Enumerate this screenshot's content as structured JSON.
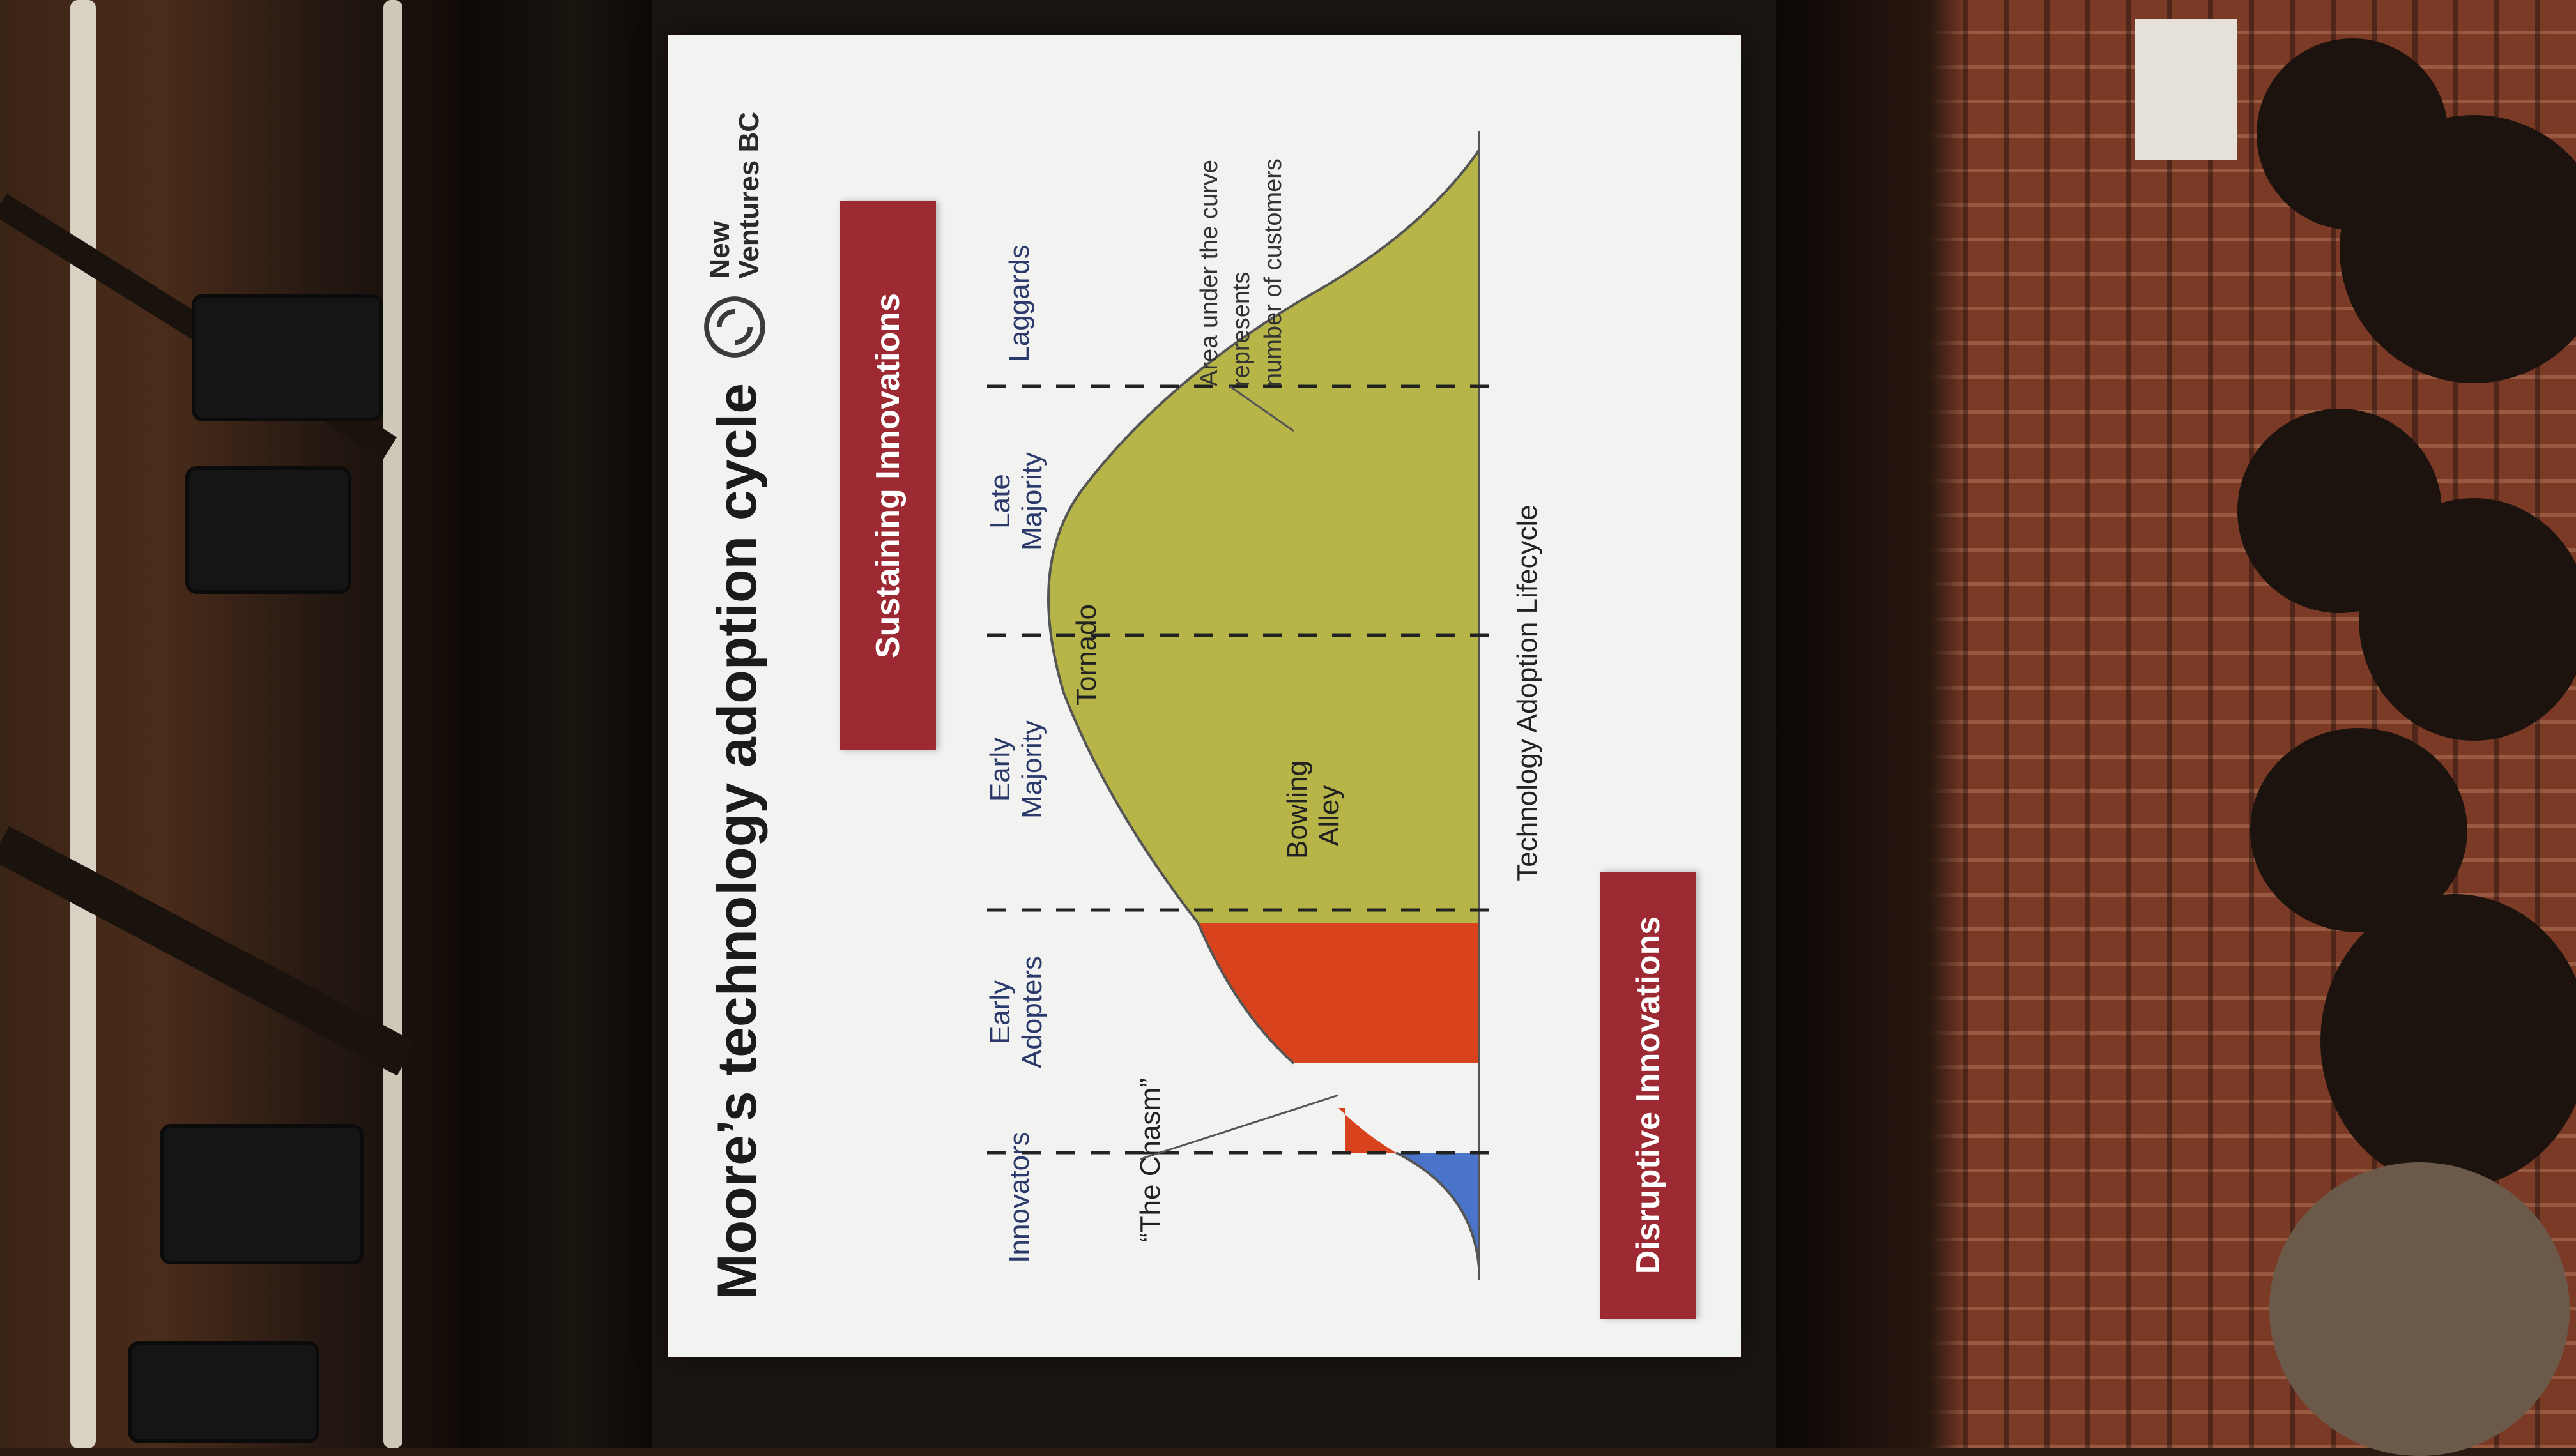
{
  "slide": {
    "title": "Moore’s technology adoption cycle",
    "brand": {
      "line1": "New",
      "line2": "Ventures BC",
      "logo_icon": "spiral-logo-icon"
    },
    "sustaining_label": "Sustaining Innovations",
    "disruptive_label": "Disruptive Innovations",
    "segments": {
      "innovators": "Innovators",
      "early_adopters_1": "Early",
      "early_adopters_2": "Adopters",
      "early_majority_1": "Early",
      "early_majority_2": "Majority",
      "late_majority_1": "Late",
      "late_majority_2": "Majority",
      "laggards": "Laggards"
    },
    "annotations": {
      "chasm": "“The Chasm”",
      "bowling_1": "Bowling",
      "bowling_2": "Alley",
      "tornado": "Tornado",
      "area_1": "Area under the curve",
      "area_2": "represents",
      "area_3": "number of customers"
    },
    "xlabel": "Technology Adoption Lifecycle",
    "colors": {
      "innovators": "#4a74c9",
      "early_adopters": "#d8431e",
      "majority": "#b7b548",
      "pill": "#9d2a32"
    }
  }
}
